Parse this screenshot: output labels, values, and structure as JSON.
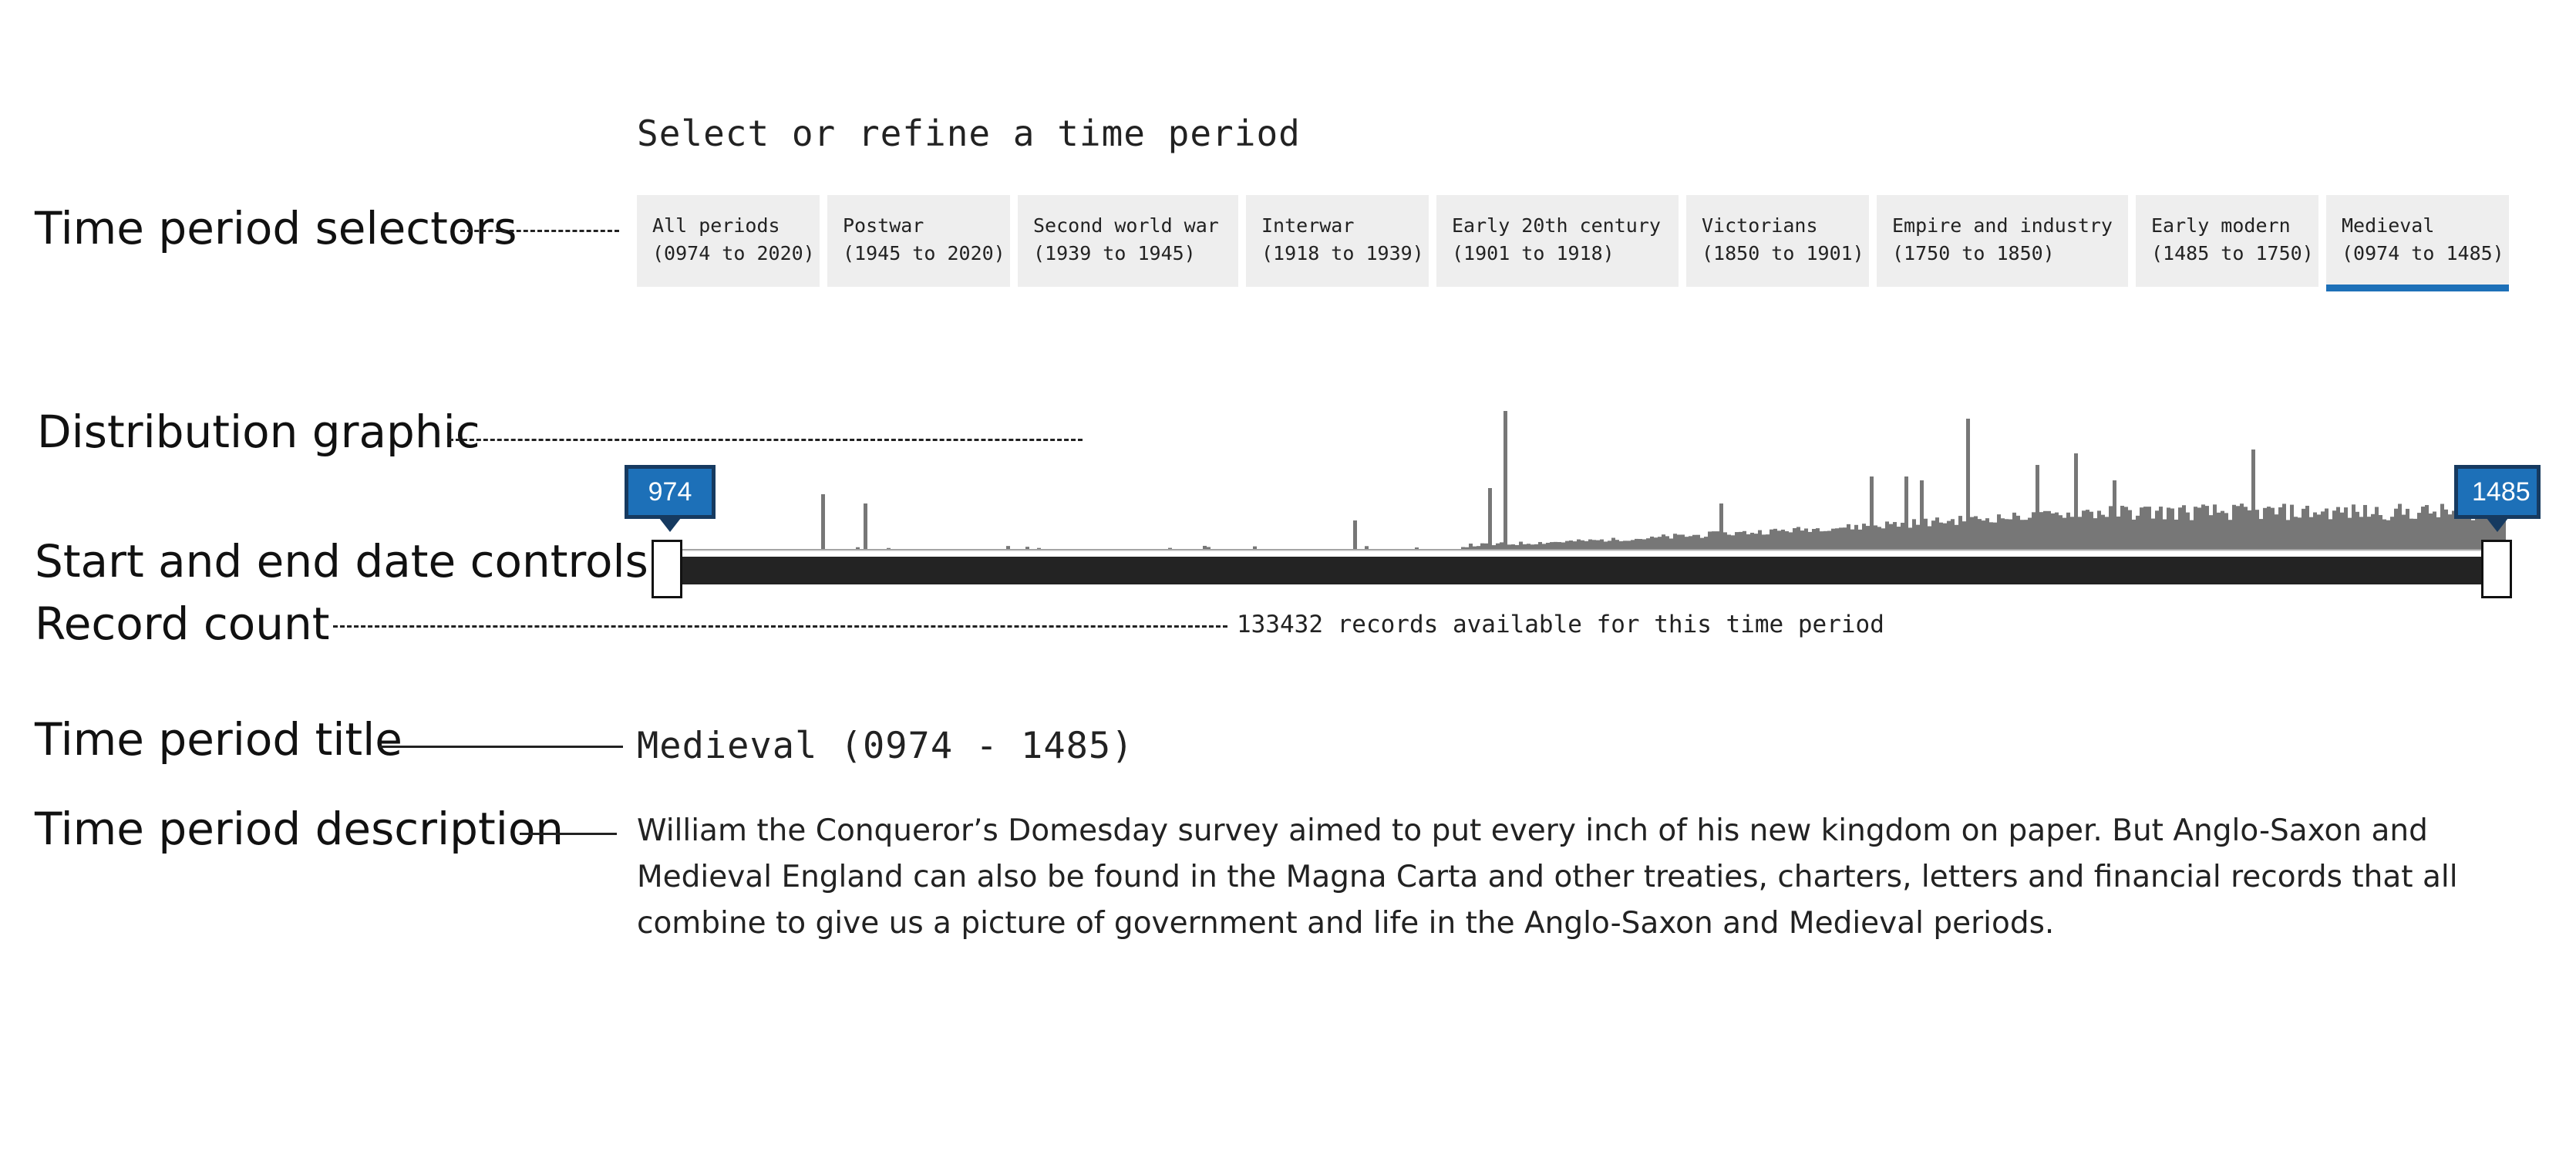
{
  "heading": "Select or refine a time period",
  "tabs": [
    {
      "name": "All periods",
      "range": "(0974 to 2020)"
    },
    {
      "name": "Postwar",
      "range": "(1945 to 2020)"
    },
    {
      "name": "Second world war",
      "range": "(1939 to 1945)"
    },
    {
      "name": "Interwar",
      "range": "(1918 to 1939)"
    },
    {
      "name": "Early 20th century",
      "range": "(1901 to 1918)"
    },
    {
      "name": "Victorians",
      "range": "(1850 to 1901)"
    },
    {
      "name": "Empire and industry",
      "range": "(1750 to 1850)"
    },
    {
      "name": "Early modern",
      "range": "(1485 to 1750)"
    },
    {
      "name": "Medieval",
      "range": "(0974 to 1485)",
      "active": true
    }
  ],
  "annotations": {
    "selectors": "Time period selectors",
    "distribution": "Distribution graphic",
    "controls": "Start and end date controls",
    "count": "Record count",
    "title": "Time period title",
    "description": "Time period description"
  },
  "slider": {
    "start": "974",
    "end": "1485"
  },
  "record_count": "133432 records available for this time period",
  "period_title": "Medieval (0974 - 1485)",
  "description": "William the Conqueror’s Domesday survey aimed to put every inch of his new kingdom on paper. But Anglo-Saxon and Medieval England can also be found in the Magna Carta and other treaties, charters, letters and financial records that all combine to give us a picture of government and life in the Anglo-Saxon and Medieval periods.",
  "colors": {
    "accent": "#1d70b8",
    "bars": "#777777",
    "track": "#232323",
    "tab_bg": "#eeeeee"
  }
}
